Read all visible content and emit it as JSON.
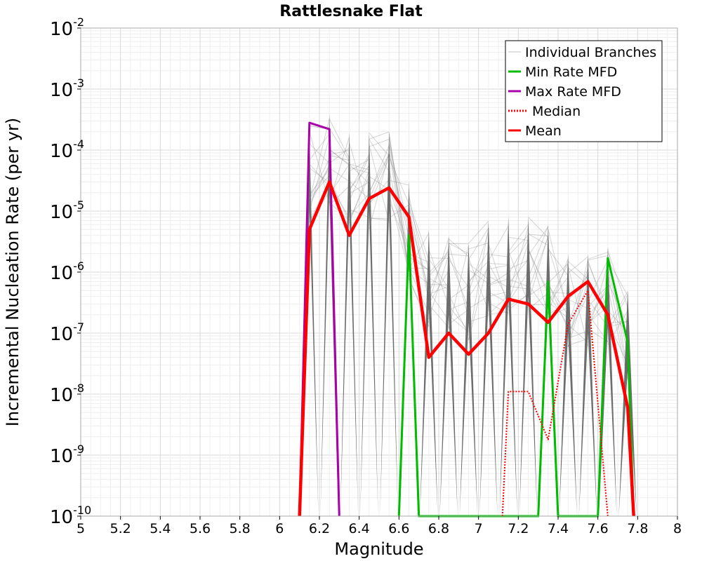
{
  "chart_data": {
    "type": "line",
    "title": "Rattlesnake Flat",
    "xlabel": "Magnitude",
    "ylabel": "Incremental Nucleation Rate (per yr)",
    "xlim": [
      5,
      8
    ],
    "ylim": [
      1e-10,
      0.01
    ],
    "yscale": "log",
    "grid": true,
    "legend_position": "top-right",
    "x_ticks": [
      "5",
      "5.2",
      "5.4",
      "5.6",
      "5.8",
      "6",
      "6.2",
      "6.4",
      "6.6",
      "6.8",
      "7",
      "7.2",
      "7.4",
      "7.6",
      "7.8",
      "8"
    ],
    "y_ticks": [
      {
        "base": "10",
        "exp": "-10"
      },
      {
        "base": "10",
        "exp": "-9"
      },
      {
        "base": "10",
        "exp": "-8"
      },
      {
        "base": "10",
        "exp": "-7"
      },
      {
        "base": "10",
        "exp": "-6"
      },
      {
        "base": "10",
        "exp": "-5"
      },
      {
        "base": "10",
        "exp": "-4"
      },
      {
        "base": "10",
        "exp": "-3"
      },
      {
        "base": "10",
        "exp": "-2"
      }
    ],
    "branch_envelope_peaks": [
      {
        "x": 6.15,
        "y": 0.0002
      },
      {
        "x": 6.25,
        "y": 0.0004
      },
      {
        "x": 6.35,
        "y": 0.0002
      },
      {
        "x": 6.45,
        "y": 0.0002
      },
      {
        "x": 6.55,
        "y": 0.0002
      },
      {
        "x": 6.65,
        "y": 3e-05
      },
      {
        "x": 6.75,
        "y": 5e-06
      },
      {
        "x": 6.85,
        "y": 4e-06
      },
      {
        "x": 6.95,
        "y": 3e-06
      },
      {
        "x": 7.05,
        "y": 7e-06
      },
      {
        "x": 7.15,
        "y": 8e-06
      },
      {
        "x": 7.25,
        "y": 8e-06
      },
      {
        "x": 7.35,
        "y": 6e-06
      },
      {
        "x": 7.45,
        "y": 2e-06
      },
      {
        "x": 7.55,
        "y": 2e-06
      },
      {
        "x": 7.65,
        "y": 2.5e-06
      },
      {
        "x": 7.75,
        "y": 5e-07
      }
    ],
    "series": [
      {
        "name": "Individual Branches",
        "color": "#999999",
        "style": "thin",
        "points": [
          [
            6.1,
            1e-10
          ],
          [
            6.15,
            0.00025
          ],
          [
            6.25,
            0.00022
          ],
          [
            6.3,
            1e-10
          ]
        ]
      },
      {
        "name": "Min Rate MFD",
        "color": "#00bb00",
        "style": "solid",
        "points": [
          [
            6.6,
            1e-10
          ],
          [
            6.65,
            4e-06
          ],
          [
            6.7,
            1e-10
          ],
          [
            7.3,
            1e-10
          ],
          [
            7.35,
            7e-07
          ],
          [
            7.4,
            1e-10
          ],
          [
            7.6,
            1e-10
          ],
          [
            7.65,
            1.7e-06
          ],
          [
            7.75,
            7e-08
          ],
          [
            7.78,
            1e-10
          ]
        ]
      },
      {
        "name": "Max Rate MFD",
        "color": "#aa00aa",
        "style": "solid",
        "points": [
          [
            6.1,
            1e-10
          ],
          [
            6.15,
            0.00028
          ],
          [
            6.25,
            0.00022
          ],
          [
            6.3,
            1e-10
          ]
        ]
      },
      {
        "name": "Median",
        "color": "#ff0000",
        "style": "dotted",
        "points": [
          [
            7.12,
            1e-10
          ],
          [
            7.15,
            1.1e-08
          ],
          [
            7.25,
            1.1e-08
          ],
          [
            7.35,
            1.8e-09
          ],
          [
            7.45,
            1.4e-07
          ],
          [
            7.55,
            5e-07
          ],
          [
            7.65,
            1e-10
          ]
        ]
      },
      {
        "name": "Mean",
        "color": "#ff0000",
        "style": "thick",
        "points": [
          [
            6.1,
            1e-10
          ],
          [
            6.15,
            5e-06
          ],
          [
            6.25,
            3e-05
          ],
          [
            6.35,
            4e-06
          ],
          [
            6.45,
            1.6e-05
          ],
          [
            6.55,
            2.4e-05
          ],
          [
            6.65,
            8e-06
          ],
          [
            6.75,
            4e-08
          ],
          [
            6.85,
            1e-07
          ],
          [
            6.95,
            4.5e-08
          ],
          [
            7.05,
            1e-07
          ],
          [
            7.15,
            3.6e-07
          ],
          [
            7.25,
            3e-07
          ],
          [
            7.35,
            1.5e-07
          ],
          [
            7.45,
            4e-07
          ],
          [
            7.55,
            7e-07
          ],
          [
            7.65,
            2e-07
          ],
          [
            7.75,
            6e-09
          ],
          [
            7.78,
            1e-10
          ]
        ]
      }
    ],
    "legend": [
      {
        "label": "Individual Branches",
        "color": "#999999",
        "style": "thin"
      },
      {
        "label": "Min Rate MFD",
        "color": "#00bb00",
        "style": "solid"
      },
      {
        "label": "Max Rate MFD",
        "color": "#aa00aa",
        "style": "solid"
      },
      {
        "label": "Median",
        "color": "#ff0000",
        "style": "dotted"
      },
      {
        "label": "Mean",
        "color": "#ff0000",
        "style": "thick"
      }
    ]
  }
}
